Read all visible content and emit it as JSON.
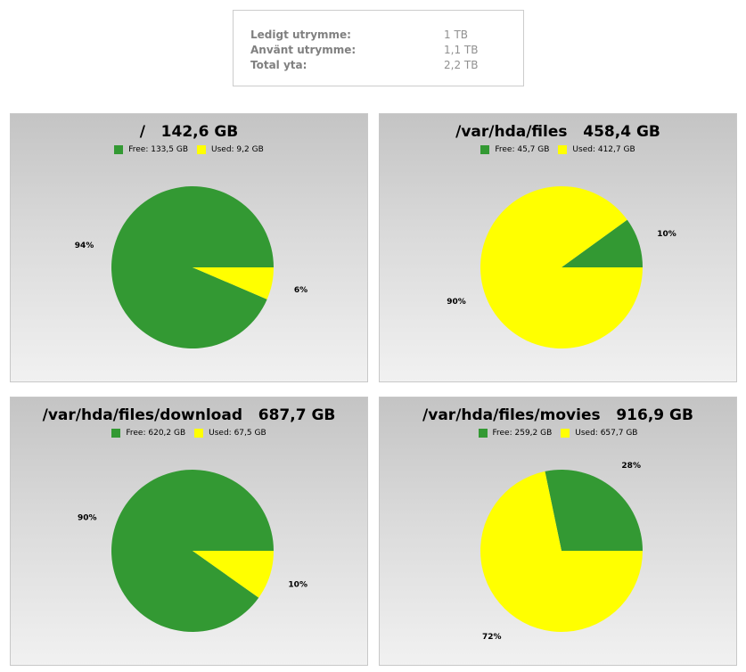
{
  "summary": {
    "rows": [
      {
        "label": "Ledigt utrymme:",
        "value": "1 TB"
      },
      {
        "label": "Använt utrymme:",
        "value": "1,1 TB"
      },
      {
        "label": "Total yta:",
        "value": "2,2 TB"
      }
    ]
  },
  "colors": {
    "free": "#339933",
    "used": "#ffff00"
  },
  "chart_data": [
    {
      "type": "pie",
      "title": "/   142,6 GB",
      "legend": [
        "Free: 133,5 GB",
        "Used: 9,2 GB"
      ],
      "categories": [
        "Free",
        "Used"
      ],
      "values": [
        133.5,
        9.2
      ],
      "percent_labels": [
        "94%",
        "6%"
      ],
      "legend_position": "top-center"
    },
    {
      "type": "pie",
      "title": "/var/hda/files   458,4 GB",
      "legend": [
        "Free: 45,7 GB",
        "Used: 412,7 GB"
      ],
      "categories": [
        "Free",
        "Used"
      ],
      "values": [
        45.7,
        412.7
      ],
      "percent_labels": [
        "10%",
        "90%"
      ],
      "legend_position": "top-center"
    },
    {
      "type": "pie",
      "title": "/var/hda/files/download   687,7 GB",
      "legend": [
        "Free: 620,2 GB",
        "Used: 67,5 GB"
      ],
      "categories": [
        "Free",
        "Used"
      ],
      "values": [
        620.2,
        67.5
      ],
      "percent_labels": [
        "90%",
        "10%"
      ],
      "legend_position": "top-center"
    },
    {
      "type": "pie",
      "title": "/var/hda/files/movies   916,9 GB",
      "legend": [
        "Free: 259,2 GB",
        "Used: 657,7 GB"
      ],
      "categories": [
        "Free",
        "Used"
      ],
      "values": [
        259.2,
        657.7
      ],
      "percent_labels": [
        "28%",
        "72%"
      ],
      "legend_position": "top-center"
    }
  ]
}
